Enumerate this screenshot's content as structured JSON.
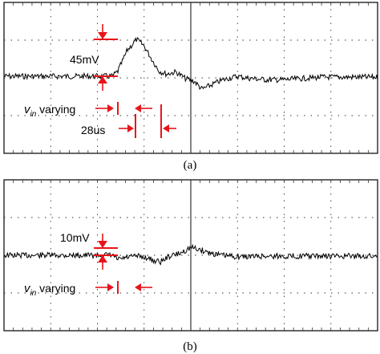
{
  "chart_data": [
    {
      "type": "line",
      "caption": "(a)",
      "grid": true,
      "divisions": {
        "x": 8,
        "y": 4
      },
      "series": [
        {
          "x": [
            0,
            0.5,
            1,
            1.5,
            2,
            2.5,
            2.9,
            3.05,
            3.3,
            3.55,
            3.75,
            3.95,
            4.15,
            4.35,
            4.6,
            4.85,
            5.1,
            5.3,
            5.5,
            5.75,
            6.0,
            6.25,
            6.5,
            7.0,
            7.5,
            8.0,
            8.5,
            9.0,
            9.5,
            10.0
          ],
          "y": [
            0,
            0,
            0,
            0,
            0,
            0,
            0,
            0.12,
            0.6,
            0.85,
            0.7,
            0.4,
            0.12,
            0.05,
            0.1,
            -0.05,
            -0.12,
            -0.3,
            -0.22,
            -0.12,
            -0.05,
            0,
            -0.04,
            -0.08,
            -0.08,
            -0.05,
            -0.02,
            -0.02,
            -0.02,
            -0.02
          ]
        }
      ],
      "annotations": [
        {
          "text": "45mV"
        },
        {
          "text": "v",
          "sub": "in",
          "rest": " varying"
        },
        {
          "text": "28us"
        }
      ]
    },
    {
      "type": "line",
      "caption": "(b)",
      "grid": true,
      "divisions": {
        "x": 8,
        "y": 4
      },
      "series": [
        {
          "x": [
            0,
            0.5,
            1,
            1.5,
            2,
            2.5,
            2.9,
            3.05,
            3.3,
            3.55,
            3.8,
            4.0,
            4.2,
            4.4,
            4.7,
            5.0,
            5.2,
            5.5,
            5.8,
            6.1,
            6.4,
            7.0,
            7.5,
            8.0,
            8.5,
            9.0,
            9.5,
            10.0
          ],
          "y": [
            0,
            0,
            0,
            0,
            0,
            0,
            0,
            -0.1,
            -0.05,
            -0.02,
            -0.05,
            -0.12,
            -0.15,
            -0.03,
            0.04,
            0.18,
            0.14,
            0.06,
            0,
            -0.02,
            -0.03,
            -0.02,
            -0.02,
            -0.02,
            -0.02,
            -0.02,
            -0.02,
            -0.02
          ]
        }
      ],
      "annotations": [
        {
          "text": "10mV"
        },
        {
          "text": "v",
          "sub": "in",
          "rest": " varying"
        }
      ]
    }
  ],
  "colors": {
    "trace": "#000000",
    "grid": "#333333",
    "annotation": "#e8141b"
  }
}
